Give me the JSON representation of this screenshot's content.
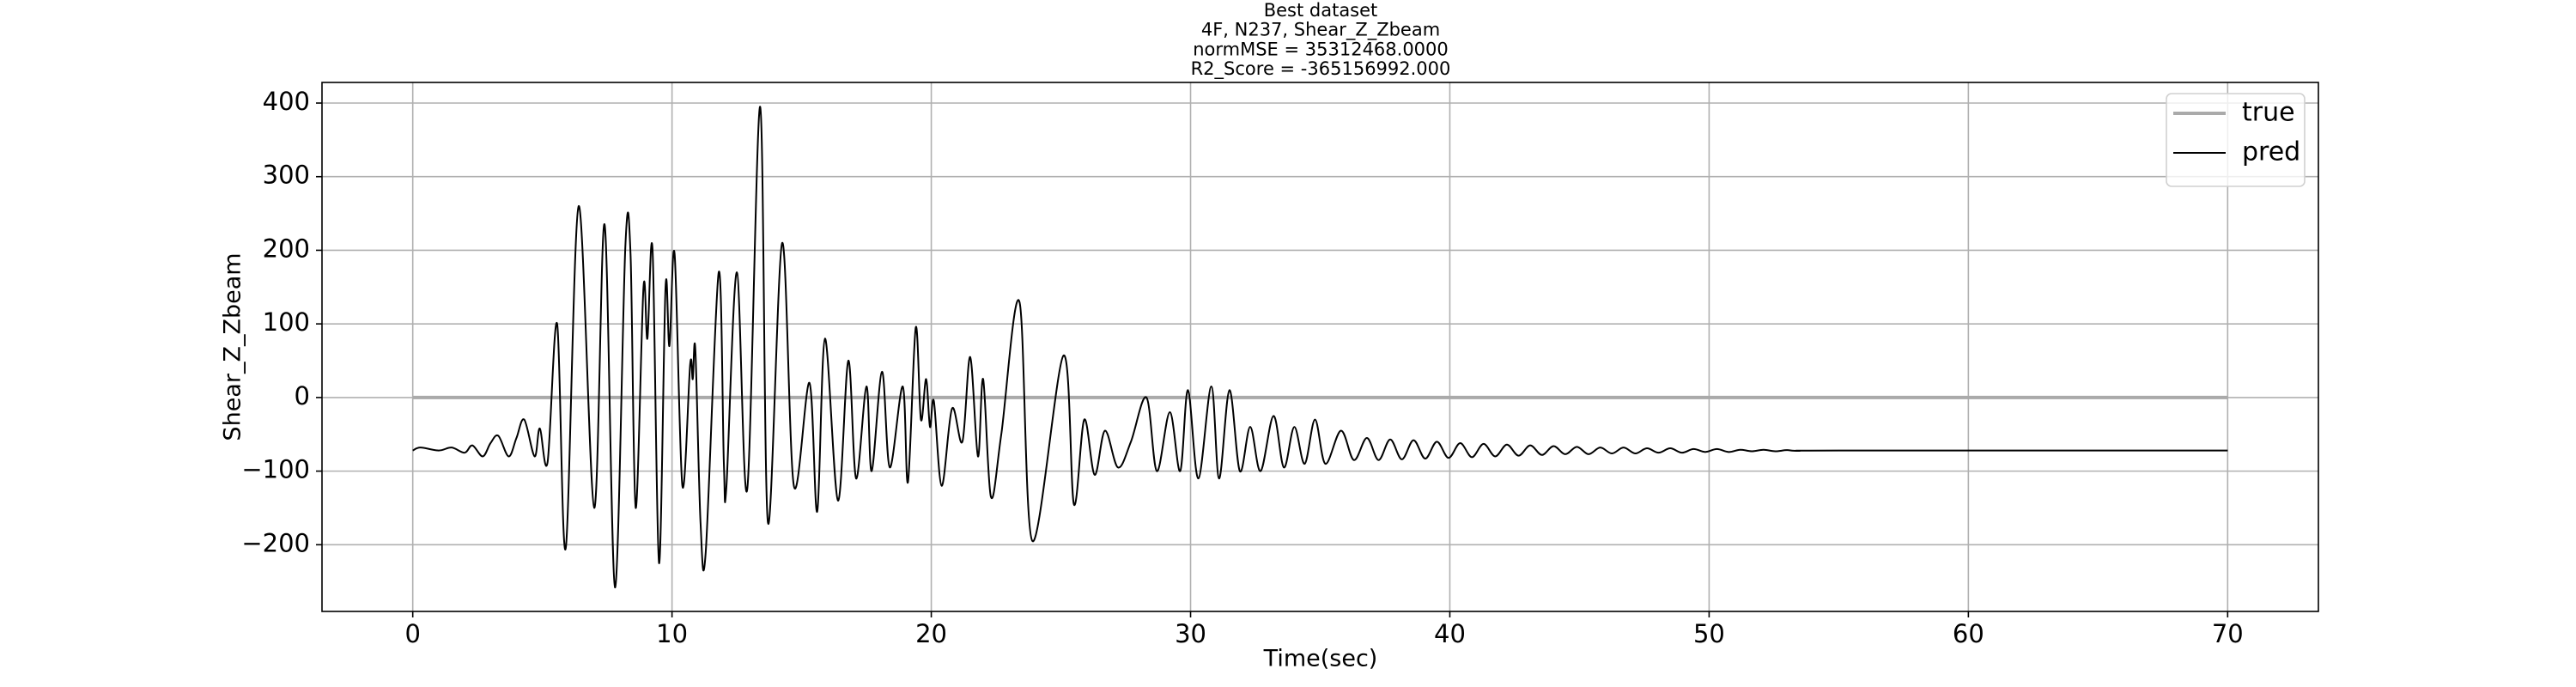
{
  "chart_data": {
    "type": "line",
    "title": [
      "Best dataset",
      "4F, N237, Shear_Z_Zbeam",
      "normMSE = 35312468.0000",
      "R2_Score = -365156992.000"
    ],
    "xlabel": "Time(sec)",
    "ylabel": "Shear_Z_Zbeam",
    "xlim": [
      -3.5,
      73.5
    ],
    "ylim": [
      -290.6,
      428
    ],
    "xticks": [
      0,
      10,
      20,
      30,
      40,
      50,
      60,
      70
    ],
    "yticks": [
      {
        "value": -200,
        "label": "−200"
      },
      {
        "value": -100,
        "label": "−100"
      },
      0,
      100,
      200,
      300,
      400
    ],
    "grid": true,
    "legend": "upper right",
    "series": [
      {
        "name": "true",
        "color": "#aaaaaa",
        "x": [
          0,
          70
        ],
        "values": [
          0,
          0
        ]
      },
      {
        "name": "pred",
        "color": "#000000",
        "x": [
          0,
          0.3,
          1,
          1.5,
          2,
          2.3,
          2.7,
          3,
          3.3,
          3.7,
          4.0,
          4.3,
          4.7,
          4.9,
          5.2,
          5.57,
          5.9,
          6.4,
          7.0,
          7.4,
          7.8,
          8.2,
          8.4,
          8.6,
          8.9,
          9.05,
          9.25,
          9.5,
          9.75,
          9.9,
          10.1,
          10.4,
          10.7,
          10.8,
          10.9,
          11.1,
          11.3,
          11.8,
          12.0,
          12.1,
          12.5,
          12.9,
          13.4,
          13.7,
          14.25,
          14.7,
          15.3,
          15.6,
          15.9,
          16.4,
          16.8,
          17.1,
          17.5,
          17.7,
          18.1,
          18.4,
          18.9,
          19.1,
          19.4,
          19.6,
          19.8,
          19.95,
          20.1,
          20.4,
          20.8,
          21.2,
          21.5,
          21.8,
          22.0,
          22.3,
          22.7,
          23.4,
          23.9,
          25.1,
          25.5,
          25.9,
          26.3,
          26.7,
          27.2,
          27.7,
          28.3,
          28.7,
          29.2,
          29.6,
          29.9,
          30.3,
          30.8,
          31.1,
          31.5,
          31.9,
          32.3,
          32.7,
          33.2,
          33.6,
          34.0,
          34.4,
          34.8,
          35.2,
          35.8,
          36.3,
          36.8,
          37.25,
          37.7,
          38.15,
          38.6,
          39.05,
          39.5,
          39.95,
          40.4,
          40.85,
          41.3,
          41.75,
          42.2,
          42.65,
          43.1,
          43.55,
          44,
          44.45,
          44.9,
          45.35,
          45.8,
          46.25,
          46.7,
          47.15,
          47.6,
          48.05,
          48.5,
          48.95,
          49.4,
          49.85,
          50.3,
          50.75,
          51.2,
          51.65,
          52.1,
          52.55,
          53,
          53.45,
          55,
          70
        ],
        "values": [
          -72,
          -68,
          -72,
          -68,
          -75,
          -65,
          -80,
          -62,
          -52,
          -80,
          -55,
          -30,
          -80,
          -42,
          -88,
          100,
          -205,
          260,
          -150,
          235,
          -258,
          205,
          195,
          -150,
          150,
          80,
          200,
          -225,
          150,
          70,
          195,
          -120,
          45,
          25,
          65,
          -170,
          -210,
          170,
          -90,
          -120,
          170,
          -125,
          395,
          -170,
          210,
          -120,
          20,
          -155,
          80,
          -140,
          50,
          -110,
          15,
          -100,
          35,
          -95,
          15,
          -115,
          95,
          -30,
          25,
          -40,
          -5,
          -120,
          -15,
          -60,
          55,
          -80,
          25,
          -135,
          -50,
          130,
          -195,
          57,
          -145,
          -30,
          -105,
          -45,
          -95,
          -60,
          0,
          -100,
          -20,
          -100,
          10,
          -110,
          15,
          -110,
          10,
          -100,
          -40,
          -100,
          -25,
          -95,
          -40,
          -90,
          -30,
          -90,
          -45,
          -85,
          -55,
          -85,
          -57,
          -84,
          -58,
          -83,
          -60,
          -82,
          -62,
          -81,
          -63,
          -80,
          -64,
          -79,
          -65,
          -78,
          -66,
          -77,
          -67,
          -77,
          -68,
          -76,
          -68,
          -76,
          -69,
          -75,
          -69,
          -75,
          -70,
          -74,
          -70,
          -74,
          -71,
          -73,
          -71,
          -73,
          -71.5,
          -72.5,
          -72,
          -72
        ]
      }
    ]
  }
}
